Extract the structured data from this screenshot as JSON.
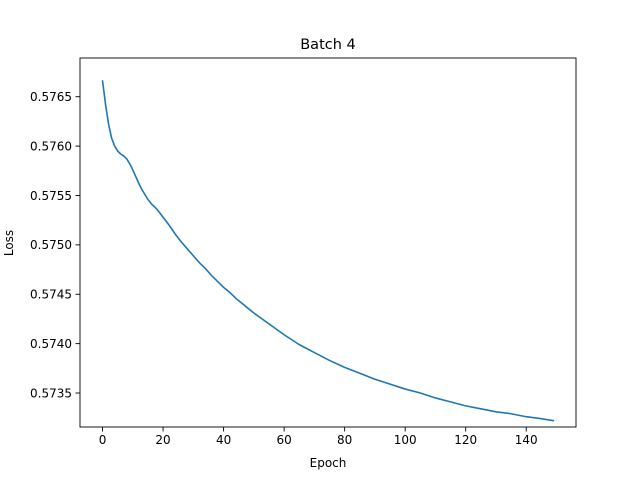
{
  "chart_data": {
    "type": "line",
    "title": "Batch 4",
    "xlabel": "Epoch",
    "ylabel": "Loss",
    "xlim": [
      -7.45,
      156.45
    ],
    "ylim": [
      0.573156,
      0.576892
    ],
    "xticks": [
      0,
      20,
      40,
      60,
      80,
      100,
      120,
      140
    ],
    "xtick_labels": [
      "0",
      "20",
      "40",
      "60",
      "80",
      "100",
      "120",
      "140"
    ],
    "yticks": [
      0.5735,
      0.574,
      0.5745,
      0.575,
      0.5755,
      0.576,
      0.5765
    ],
    "ytick_labels": [
      "0.5735",
      "0.5740",
      "0.5745",
      "0.5750",
      "0.5755",
      "0.5760",
      "0.5765"
    ],
    "grid": false,
    "series": [
      {
        "color": "#1f77b4",
        "x": [
          0,
          1,
          2,
          3,
          4,
          5,
          6,
          7,
          8,
          9,
          10,
          11,
          12,
          13,
          14,
          15,
          16,
          17,
          18,
          19,
          20,
          22,
          24,
          26,
          28,
          30,
          32,
          34,
          36,
          38,
          40,
          42,
          44,
          46,
          48,
          50,
          55,
          60,
          65,
          70,
          75,
          80,
          85,
          90,
          95,
          100,
          105,
          110,
          115,
          120,
          125,
          130,
          135,
          140,
          145,
          149
        ],
        "y": [
          0.57666,
          0.57642,
          0.57622,
          0.57608,
          0.576,
          0.57595,
          0.57592,
          0.5759,
          0.57587,
          0.57582,
          0.57576,
          0.57569,
          0.57562,
          0.57556,
          0.57551,
          0.57546,
          0.57542,
          0.57539,
          0.57536,
          0.57532,
          0.57528,
          0.5752,
          0.57511,
          0.57503,
          0.57496,
          0.57489,
          0.57482,
          0.57476,
          0.57469,
          0.57463,
          0.57457,
          0.57452,
          0.57446,
          0.57441,
          0.57436,
          0.57431,
          0.5742,
          0.57409,
          0.57399,
          0.57391,
          0.57383,
          0.57376,
          0.5737,
          0.57364,
          0.57359,
          0.57354,
          0.5735,
          0.57345,
          0.57341,
          0.57337,
          0.57334,
          0.57331,
          0.57329,
          0.57326,
          0.57324,
          0.57322
        ]
      }
    ]
  }
}
